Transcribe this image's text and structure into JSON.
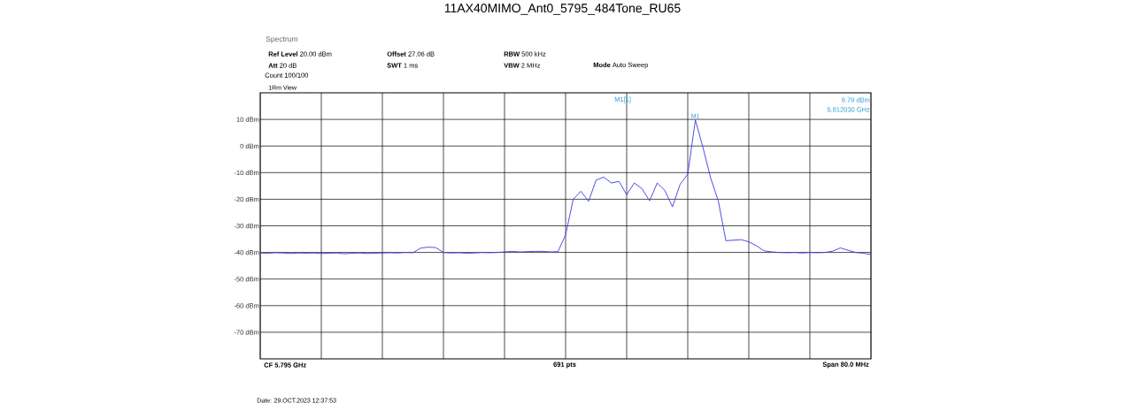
{
  "chart_data": {
    "type": "line",
    "title": "11AX40MIMO_Ant0_5795_484Tone_RU65",
    "categories": [
      null,
      null,
      null,
      null,
      null,
      null,
      null,
      null,
      null,
      null,
      null,
      null,
      null,
      null,
      null,
      null,
      null,
      null,
      null,
      null,
      null,
      null,
      null,
      null,
      null,
      null,
      null,
      null,
      null,
      null,
      null,
      null,
      null,
      null,
      null,
      null,
      null,
      null,
      null,
      null,
      null,
      null,
      null,
      null,
      null,
      null,
      null,
      null,
      null,
      null,
      null,
      null,
      null,
      null,
      null,
      null,
      null,
      null,
      null,
      null,
      null,
      null,
      null,
      null,
      null,
      null,
      null,
      null,
      null,
      null,
      null,
      null,
      null,
      null,
      null,
      null,
      null,
      null,
      null,
      null,
      null
    ],
    "ylim": [
      -80,
      20
    ],
    "yticks": [
      {
        "value": 10,
        "label": "10 dBm"
      },
      {
        "value": 0,
        "label": "0 dBm"
      },
      {
        "value": -10,
        "label": "-10 dBm"
      },
      {
        "value": -20,
        "label": "-20 dBm"
      },
      {
        "value": -30,
        "label": "-30 dBm"
      },
      {
        "value": -40,
        "label": "-40 dBm"
      },
      {
        "value": -50,
        "label": "-50 dBm"
      },
      {
        "value": -60,
        "label": "-60 dBm"
      },
      {
        "value": -70,
        "label": "-70 dBm"
      }
    ],
    "grid": true,
    "marker": "none",
    "line_style": "solid",
    "series": [
      {
        "color": "#3b3be0",
        "values": [
          -40.2,
          -40.3,
          -40.1,
          -40.2,
          -40.4,
          -40.2,
          -40.3,
          -40.2,
          -40.4,
          -40.3,
          -40.2,
          -40.5,
          -40.3,
          -40.2,
          -40.4,
          -40.3,
          -40.2,
          -40.1,
          -40.2,
          -40.0,
          -40.1,
          -38.4,
          -38.0,
          -38.2,
          -40.0,
          -40.2,
          -40.1,
          -40.3,
          -40.2,
          -40.0,
          -40.1,
          -40.0,
          -39.8,
          -39.6,
          -39.8,
          -39.7,
          -39.6,
          -39.6,
          -39.8,
          -39.7,
          -33.4,
          -20,
          -17,
          -20.8,
          -12.8,
          -11.7,
          -13.9,
          -13.3,
          -18.3,
          -13.9,
          -16,
          -20.6,
          -13.9,
          -16.7,
          -22.8,
          -14.4,
          -10.6,
          9.79,
          -0.6,
          -12,
          -20.6,
          -35.6,
          -35.4,
          -35.2,
          -36,
          -37.5,
          -39.4,
          -39.8,
          -40,
          -40.1,
          -40,
          -40.2,
          -40,
          -40.1,
          -40,
          -39.5,
          -38.3,
          -39.2,
          -40,
          -40.3,
          -40.8
        ]
      }
    ],
    "annotations": [
      "Spectrum",
      "**Ref Level** 20.00 dBm",
      "**Offset** 27.06 dB",
      "**RBW** 500 kHz",
      "**Att** 20 dB",
      "**SWT** 1 ms",
      "**VBW** 2 MHz",
      "**Mode** Auto Sweep",
      "Count 100/100",
      "1Rm View",
      "M1[1]",
      "9.79 dBm",
      "5.812030 GHz",
      {
        "text": "M1",
        "y": 9.79
      },
      "CF 5.795 GHz",
      "691 pts",
      "Span 80.0 MHz",
      "Date: 29.OCT.2023 12:37:53"
    ]
  }
}
